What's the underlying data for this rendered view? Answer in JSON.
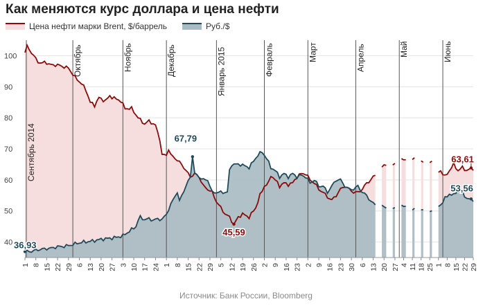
{
  "title": "Как меняются курс доллара и цена нефти",
  "legend": {
    "oil": "Цена нефти марки Brent, $/баррель",
    "rub": "Руб./$"
  },
  "source": "Источник: Банк России, Bloomberg",
  "colors": {
    "oil_line": "#8b0a0a",
    "oil_fill": "#f7dede",
    "rub_line": "#1f4a5a",
    "rub_fill": "#a9bcc2",
    "grid": "#e3e3e3",
    "month_line": "#555555"
  },
  "chart_data": {
    "type": "area",
    "title": "Как меняются курс доллара и цена нефти",
    "xlabel": "",
    "ylabel": "",
    "ylim": [
      35,
      105
    ],
    "yticks": [
      40,
      50,
      60,
      70,
      80,
      90,
      100
    ],
    "grid": true,
    "legend_position": "top-left",
    "n_points": 207,
    "xticks": [
      {
        "i": 0,
        "label": "1"
      },
      {
        "i": 5,
        "label": "8"
      },
      {
        "i": 10,
        "label": "15"
      },
      {
        "i": 15,
        "label": "22"
      },
      {
        "i": 20,
        "label": "29"
      },
      {
        "i": 25,
        "label": "6"
      },
      {
        "i": 30,
        "label": "13"
      },
      {
        "i": 35,
        "label": "20"
      },
      {
        "i": 40,
        "label": "27"
      },
      {
        "i": 45,
        "label": "3"
      },
      {
        "i": 50,
        "label": "10"
      },
      {
        "i": 55,
        "label": "17"
      },
      {
        "i": 60,
        "label": "24"
      },
      {
        "i": 65,
        "label": "1"
      },
      {
        "i": 70,
        "label": "8"
      },
      {
        "i": 75,
        "label": "15"
      },
      {
        "i": 80,
        "label": "22"
      },
      {
        "i": 85,
        "label": "29"
      },
      {
        "i": 90,
        "label": "5"
      },
      {
        "i": 95,
        "label": "12"
      },
      {
        "i": 100,
        "label": "19"
      },
      {
        "i": 105,
        "label": "26"
      },
      {
        "i": 110,
        "label": "2"
      },
      {
        "i": 115,
        "label": "9"
      },
      {
        "i": 120,
        "label": "16"
      },
      {
        "i": 125,
        "label": "23"
      },
      {
        "i": 130,
        "label": "2"
      },
      {
        "i": 135,
        "label": "9"
      },
      {
        "i": 140,
        "label": "16"
      },
      {
        "i": 145,
        "label": "23"
      },
      {
        "i": 150,
        "label": "30"
      },
      {
        "i": 155,
        "label": "6"
      },
      {
        "i": 160,
        "label": "13"
      },
      {
        "i": 165,
        "label": "20"
      },
      {
        "i": 170,
        "label": "27"
      },
      {
        "i": 174,
        "label": "4"
      },
      {
        "i": 178,
        "label": "11"
      },
      {
        "i": 182,
        "label": "18"
      },
      {
        "i": 186,
        "label": "25"
      },
      {
        "i": 190,
        "label": "1"
      },
      {
        "i": 194,
        "label": "8"
      },
      {
        "i": 198,
        "label": "15"
      },
      {
        "i": 202,
        "label": "22"
      },
      {
        "i": 206,
        "label": "29"
      }
    ],
    "months": [
      {
        "i": 0,
        "label": "Сентябрь 2014"
      },
      {
        "i": 22,
        "label": "Октябрь"
      },
      {
        "i": 45,
        "label": "Ноябрь"
      },
      {
        "i": 65,
        "label": "Декабрь"
      },
      {
        "i": 88,
        "label": "Январь 2015"
      },
      {
        "i": 110,
        "label": "Февраль"
      },
      {
        "i": 130,
        "label": "Март"
      },
      {
        "i": 152,
        "label": "Апрель"
      },
      {
        "i": 172,
        "label": "Май"
      },
      {
        "i": 192,
        "label": "Июнь"
      }
    ],
    "annotations": [
      {
        "text": "36,93",
        "series": "rub",
        "i": 0
      },
      {
        "text": "67,79",
        "series": "rub",
        "i": 77
      },
      {
        "text": "45,59",
        "series": "oil",
        "i": 96
      },
      {
        "text": "63,61",
        "series": "oil",
        "i": 205
      },
      {
        "text": "53,56",
        "series": "rub",
        "i": 205
      }
    ],
    "series": [
      {
        "name": "Цена нефти марки Brent, $/баррель",
        "key": "oil",
        "keypoints": [
          [
            0,
            101
          ],
          [
            1,
            103
          ],
          [
            3,
            101
          ],
          [
            6,
            98
          ],
          [
            8,
            97.5
          ],
          [
            9,
            98
          ],
          [
            12,
            97
          ],
          [
            15,
            97
          ],
          [
            20,
            96
          ],
          [
            23,
            93
          ],
          [
            26,
            91
          ],
          [
            28,
            89
          ],
          [
            30,
            85
          ],
          [
            32,
            84
          ],
          [
            34,
            86.5
          ],
          [
            35,
            86
          ],
          [
            37,
            85.5
          ],
          [
            39,
            87
          ],
          [
            42,
            86
          ],
          [
            44,
            85.5
          ],
          [
            46,
            83
          ],
          [
            49,
            83
          ],
          [
            52,
            80
          ],
          [
            55,
            78
          ],
          [
            57,
            79
          ],
          [
            60,
            77.5
          ],
          [
            62,
            73
          ],
          [
            63,
            68
          ],
          [
            65,
            68
          ],
          [
            66,
            70
          ],
          [
            67,
            68
          ],
          [
            69,
            67
          ],
          [
            72,
            65
          ],
          [
            74,
            63
          ],
          [
            76,
            61
          ],
          [
            78,
            62
          ],
          [
            80,
            61
          ],
          [
            82,
            58
          ],
          [
            84,
            57
          ],
          [
            86,
            56
          ],
          [
            88,
            53
          ],
          [
            90,
            51
          ],
          [
            92,
            49
          ],
          [
            94,
            48
          ],
          [
            96,
            45.6
          ],
          [
            98,
            48
          ],
          [
            100,
            49
          ],
          [
            103,
            48
          ],
          [
            106,
            51
          ],
          [
            108,
            55
          ],
          [
            110,
            58
          ],
          [
            112,
            59
          ],
          [
            113,
            61.5
          ],
          [
            115,
            60
          ],
          [
            117,
            58
          ],
          [
            119,
            59
          ],
          [
            121,
            58.5
          ],
          [
            123,
            59
          ],
          [
            125,
            61
          ],
          [
            127,
            62
          ],
          [
            129,
            62
          ],
          [
            131,
            60
          ],
          [
            133,
            59
          ],
          [
            135,
            57
          ],
          [
            137,
            56
          ],
          [
            139,
            54.5
          ],
          [
            141,
            53.5
          ],
          [
            143,
            55
          ],
          [
            145,
            57
          ],
          [
            147,
            58
          ],
          [
            149,
            57
          ],
          [
            151,
            56
          ],
          [
            153,
            56
          ],
          [
            155,
            57
          ],
          [
            157,
            59
          ],
          [
            159,
            60
          ],
          [
            160,
            61
          ],
          [
            162,
            62
          ],
          [
            164,
            64
          ],
          [
            165,
            65
          ],
          [
            167,
            65
          ],
          [
            169,
            65
          ],
          [
            171,
            66
          ],
          [
            173,
            67
          ],
          [
            175,
            66
          ],
          [
            177,
            67
          ],
          [
            178,
            66.5
          ],
          [
            180,
            67
          ],
          [
            182,
            66
          ],
          [
            183,
            65.5
          ],
          [
            185,
            65
          ],
          [
            187,
            66
          ],
          [
            189,
            64
          ],
          [
            190,
            62.5
          ],
          [
            191,
            63
          ],
          [
            193,
            61
          ],
          [
            195,
            63
          ],
          [
            197,
            65
          ],
          [
            199,
            63
          ],
          [
            201,
            64
          ],
          [
            203,
            63
          ],
          [
            205,
            63.6
          ],
          [
            206,
            63.6
          ]
        ],
        "gaps": [
          [
            162,
            163
          ],
          [
            167,
            168
          ],
          [
            171,
            172
          ],
          [
            176,
            177
          ],
          [
            180,
            181
          ],
          [
            184,
            185
          ],
          [
            188,
            189
          ]
        ]
      },
      {
        "name": "Руб./$",
        "key": "rub",
        "keypoints": [
          [
            0,
            36.9
          ],
          [
            3,
            37
          ],
          [
            6,
            37.5
          ],
          [
            9,
            37.8
          ],
          [
            12,
            38
          ],
          [
            15,
            38.5
          ],
          [
            18,
            38.6
          ],
          [
            21,
            39
          ],
          [
            24,
            39.6
          ],
          [
            27,
            40
          ],
          [
            30,
            40.2
          ],
          [
            33,
            40.6
          ],
          [
            36,
            41
          ],
          [
            39,
            41.2
          ],
          [
            42,
            41.5
          ],
          [
            45,
            42
          ],
          [
            47,
            43
          ],
          [
            49,
            44
          ],
          [
            51,
            45
          ],
          [
            52,
            47
          ],
          [
            53,
            48
          ],
          [
            55,
            47.2
          ],
          [
            57,
            47.5
          ],
          [
            59,
            47
          ],
          [
            61,
            47.5
          ],
          [
            63,
            47.2
          ],
          [
            65,
            49
          ],
          [
            67,
            52
          ],
          [
            69,
            55
          ],
          [
            70,
            56
          ],
          [
            71,
            53
          ],
          [
            72,
            55
          ],
          [
            74,
            58
          ],
          [
            76,
            61
          ],
          [
            77,
            67.8
          ],
          [
            78,
            62
          ],
          [
            80,
            61
          ],
          [
            82,
            60
          ],
          [
            84,
            60
          ],
          [
            86,
            56
          ],
          [
            87,
            56
          ],
          [
            90,
            56
          ],
          [
            93,
            56
          ],
          [
            94,
            63
          ],
          [
            95,
            65
          ],
          [
            97,
            65
          ],
          [
            99,
            65
          ],
          [
            101,
            64.5
          ],
          [
            103,
            64
          ],
          [
            105,
            66
          ],
          [
            107,
            68
          ],
          [
            109,
            69
          ],
          [
            111,
            67
          ],
          [
            113,
            64
          ],
          [
            115,
            63
          ],
          [
            117,
            61
          ],
          [
            119,
            62
          ],
          [
            121,
            61
          ],
          [
            123,
            62
          ],
          [
            125,
            61
          ],
          [
            127,
            61.5
          ],
          [
            129,
            61
          ],
          [
            131,
            59
          ],
          [
            133,
            60
          ],
          [
            135,
            58
          ],
          [
            137,
            58
          ],
          [
            139,
            56
          ],
          [
            141,
            58
          ],
          [
            143,
            60
          ],
          [
            145,
            60
          ],
          [
            147,
            58
          ],
          [
            149,
            57
          ],
          [
            151,
            57
          ],
          [
            153,
            58
          ],
          [
            155,
            56
          ],
          [
            157,
            55
          ],
          [
            159,
            53
          ],
          [
            161,
            52
          ],
          [
            163,
            52
          ],
          [
            165,
            51.5
          ],
          [
            167,
            51
          ],
          [
            169,
            51
          ],
          [
            171,
            51.5
          ],
          [
            173,
            52
          ],
          [
            175,
            51
          ],
          [
            177,
            50
          ],
          [
            179,
            50.5
          ],
          [
            181,
            50.3
          ],
          [
            183,
            50.2
          ],
          [
            185,
            49.5
          ],
          [
            187,
            50
          ],
          [
            189,
            50
          ],
          [
            190,
            51.5
          ],
          [
            191,
            52
          ],
          [
            193,
            54
          ],
          [
            195,
            55.5
          ],
          [
            197,
            55
          ],
          [
            199,
            57
          ],
          [
            201,
            56
          ],
          [
            203,
            54
          ],
          [
            205,
            53.6
          ],
          [
            206,
            53.6
          ]
        ],
        "gaps": [
          [
            162,
            163
          ],
          [
            167,
            168
          ],
          [
            171,
            172
          ],
          [
            176,
            177
          ],
          [
            180,
            181
          ],
          [
            184,
            185
          ],
          [
            188,
            189
          ]
        ]
      }
    ]
  }
}
